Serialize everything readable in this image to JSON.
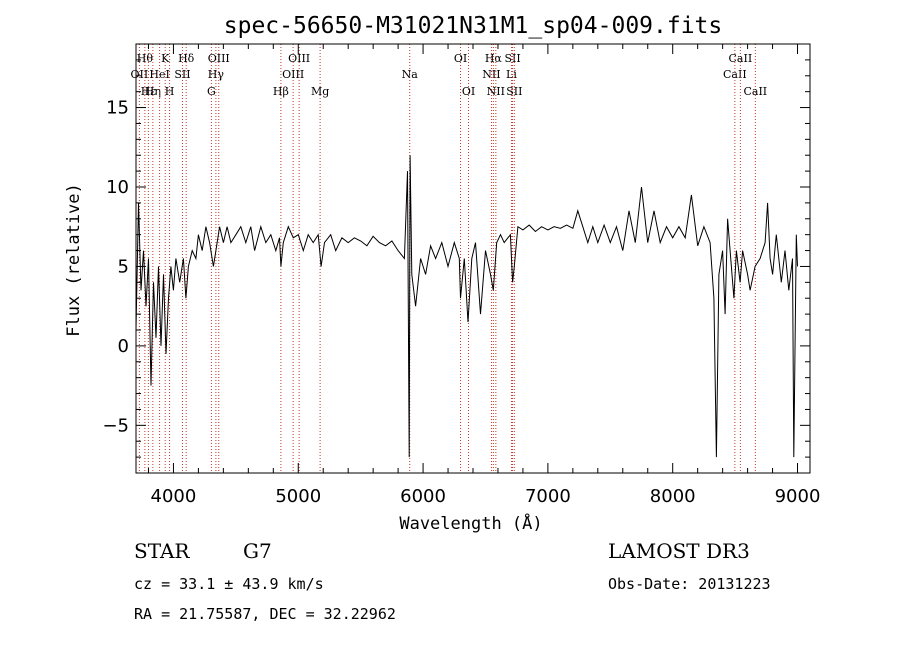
{
  "chart_data": {
    "type": "line",
    "title": "spec-56650-M31021N31M1_sp04-009.fits",
    "xlabel": "Wavelength (Å)",
    "ylabel": "Flux (relative)",
    "xlim": [
      3700,
      9100
    ],
    "ylim": [
      -8,
      19
    ],
    "xticks": [
      4000,
      5000,
      6000,
      7000,
      8000,
      9000
    ],
    "xtick_labels": [
      "4000",
      "5000",
      "6000",
      "7000",
      "8000",
      "9000"
    ],
    "yticks": [
      -5,
      0,
      5,
      10,
      15
    ],
    "ytick_labels": [
      "−5",
      "0",
      "5",
      "10",
      "15"
    ],
    "series": [
      {
        "name": "flux",
        "points": [
          [
            3700,
            1.0
          ],
          [
            3720,
            9.0
          ],
          [
            3740,
            3.5
          ],
          [
            3760,
            6.0
          ],
          [
            3780,
            2.5
          ],
          [
            3800,
            5.5
          ],
          [
            3820,
            -2.5
          ],
          [
            3840,
            4.0
          ],
          [
            3860,
            0.5
          ],
          [
            3880,
            5.0
          ],
          [
            3900,
            0.0
          ],
          [
            3920,
            4.5
          ],
          [
            3940,
            -0.5
          ],
          [
            3960,
            3.0
          ],
          [
            3980,
            5.0
          ],
          [
            4000,
            3.5
          ],
          [
            4020,
            5.5
          ],
          [
            4050,
            4.0
          ],
          [
            4080,
            5.5
          ],
          [
            4100,
            3.0
          ],
          [
            4120,
            5.0
          ],
          [
            4150,
            6.0
          ],
          [
            4180,
            5.5
          ],
          [
            4200,
            7.0
          ],
          [
            4230,
            6.0
          ],
          [
            4260,
            7.5
          ],
          [
            4290,
            6.5
          ],
          [
            4320,
            5.0
          ],
          [
            4340,
            6.0
          ],
          [
            4370,
            7.5
          ],
          [
            4400,
            6.5
          ],
          [
            4430,
            7.5
          ],
          [
            4460,
            6.5
          ],
          [
            4500,
            7.0
          ],
          [
            4540,
            7.5
          ],
          [
            4580,
            6.5
          ],
          [
            4620,
            7.5
          ],
          [
            4650,
            6.0
          ],
          [
            4700,
            7.5
          ],
          [
            4740,
            6.5
          ],
          [
            4780,
            7.0
          ],
          [
            4820,
            6.0
          ],
          [
            4850,
            6.8
          ],
          [
            4861,
            5.0
          ],
          [
            4880,
            6.5
          ],
          [
            4920,
            7.5
          ],
          [
            4960,
            6.8
          ],
          [
            5000,
            7.0
          ],
          [
            5040,
            6.0
          ],
          [
            5080,
            7.0
          ],
          [
            5120,
            6.5
          ],
          [
            5160,
            7.0
          ],
          [
            5183,
            5.0
          ],
          [
            5210,
            6.5
          ],
          [
            5260,
            7.0
          ],
          [
            5300,
            6.0
          ],
          [
            5350,
            6.8
          ],
          [
            5400,
            6.5
          ],
          [
            5450,
            6.8
          ],
          [
            5500,
            6.6
          ],
          [
            5550,
            6.3
          ],
          [
            5600,
            6.9
          ],
          [
            5650,
            6.5
          ],
          [
            5700,
            6.3
          ],
          [
            5750,
            6.6
          ],
          [
            5800,
            6.0
          ],
          [
            5850,
            5.5
          ],
          [
            5875,
            11.0
          ],
          [
            5889,
            -7.0
          ],
          [
            5896,
            12.0
          ],
          [
            5910,
            4.5
          ],
          [
            5940,
            2.5
          ],
          [
            5980,
            5.5
          ],
          [
            6020,
            4.5
          ],
          [
            6060,
            6.3
          ],
          [
            6100,
            5.5
          ],
          [
            6150,
            6.5
          ],
          [
            6200,
            5.0
          ],
          [
            6250,
            6.5
          ],
          [
            6290,
            5.5
          ],
          [
            6300,
            3.0
          ],
          [
            6330,
            5.5
          ],
          [
            6360,
            1.5
          ],
          [
            6390,
            5.5
          ],
          [
            6420,
            6.5
          ],
          [
            6460,
            2.0
          ],
          [
            6500,
            6.0
          ],
          [
            6540,
            4.5
          ],
          [
            6563,
            3.5
          ],
          [
            6590,
            6.5
          ],
          [
            6620,
            7.0
          ],
          [
            6650,
            6.5
          ],
          [
            6700,
            7.0
          ],
          [
            6717,
            4.0
          ],
          [
            6731,
            5.0
          ],
          [
            6760,
            7.5
          ],
          [
            6800,
            7.3
          ],
          [
            6850,
            7.6
          ],
          [
            6900,
            7.2
          ],
          [
            6950,
            7.5
          ],
          [
            7000,
            7.3
          ],
          [
            7050,
            7.5
          ],
          [
            7100,
            7.4
          ],
          [
            7150,
            7.6
          ],
          [
            7200,
            7.4
          ],
          [
            7240,
            8.5
          ],
          [
            7280,
            7.5
          ],
          [
            7320,
            6.5
          ],
          [
            7360,
            7.5
          ],
          [
            7400,
            6.5
          ],
          [
            7450,
            7.6
          ],
          [
            7500,
            6.5
          ],
          [
            7550,
            7.5
          ],
          [
            7600,
            6.0
          ],
          [
            7650,
            8.5
          ],
          [
            7700,
            6.5
          ],
          [
            7750,
            10.0
          ],
          [
            7800,
            6.5
          ],
          [
            7850,
            8.5
          ],
          [
            7900,
            6.5
          ],
          [
            7950,
            7.5
          ],
          [
            8000,
            6.8
          ],
          [
            8050,
            7.5
          ],
          [
            8100,
            6.8
          ],
          [
            8150,
            9.5
          ],
          [
            8200,
            6.3
          ],
          [
            8250,
            7.5
          ],
          [
            8300,
            6.5
          ],
          [
            8330,
            3.0
          ],
          [
            8350,
            -7.0
          ],
          [
            8370,
            4.5
          ],
          [
            8400,
            6.0
          ],
          [
            8420,
            2.0
          ],
          [
            8440,
            8.0
          ],
          [
            8460,
            6.0
          ],
          [
            8490,
            3.0
          ],
          [
            8510,
            6.0
          ],
          [
            8540,
            4.0
          ],
          [
            8560,
            6.0
          ],
          [
            8600,
            4.5
          ],
          [
            8620,
            3.5
          ],
          [
            8660,
            5.0
          ],
          [
            8700,
            5.5
          ],
          [
            8740,
            6.5
          ],
          [
            8760,
            9.0
          ],
          [
            8780,
            5.5
          ],
          [
            8800,
            4.5
          ],
          [
            8830,
            7.0
          ],
          [
            8870,
            4.0
          ],
          [
            8900,
            6.0
          ],
          [
            8930,
            3.5
          ],
          [
            8960,
            5.5
          ],
          [
            8970,
            -7.0
          ],
          [
            8990,
            7.0
          ],
          [
            9000,
            5.0
          ]
        ]
      }
    ],
    "spectral_lines": [
      {
        "wavelength": 3727,
        "label": "OII",
        "row": 2
      },
      {
        "wavelength": 3771,
        "label": "Hθ",
        "row": 1
      },
      {
        "wavelength": 3799,
        "label": "Hε",
        "row": 3
      },
      {
        "wavelength": 3835,
        "label": "Hη",
        "row": 3
      },
      {
        "wavelength": 3889,
        "label": "HeI",
        "row": 2
      },
      {
        "wavelength": 3934,
        "label": "K",
        "row": 1
      },
      {
        "wavelength": 3969,
        "label": "H",
        "row": 3
      },
      {
        "wavelength": 4072,
        "label": "SII",
        "row": 2
      },
      {
        "wavelength": 4102,
        "label": "Hδ",
        "row": 1
      },
      {
        "wavelength": 4304,
        "label": "G",
        "row": 3
      },
      {
        "wavelength": 4340,
        "label": "Hγ",
        "row": 2
      },
      {
        "wavelength": 4363,
        "label": "OIII",
        "row": 1
      },
      {
        "wavelength": 4861,
        "label": "Hβ",
        "row": 3
      },
      {
        "wavelength": 4959,
        "label": "OIII",
        "row": 2
      },
      {
        "wavelength": 5007,
        "label": "OIII",
        "row": 1
      },
      {
        "wavelength": 5175,
        "label": "Mg",
        "row": 3
      },
      {
        "wavelength": 5893,
        "label": "Na",
        "row": 2
      },
      {
        "wavelength": 6300,
        "label": "OI",
        "row": 1
      },
      {
        "wavelength": 6364,
        "label": "OI",
        "row": 3
      },
      {
        "wavelength": 6548,
        "label": "NII",
        "row": 2
      },
      {
        "wavelength": 6563,
        "label": "Hα",
        "row": 1
      },
      {
        "wavelength": 6583,
        "label": "NII",
        "row": 3
      },
      {
        "wavelength": 6708,
        "label": "Li",
        "row": 2
      },
      {
        "wavelength": 6717,
        "label": "SII",
        "row": 1
      },
      {
        "wavelength": 6731,
        "label": "SII",
        "row": 3
      },
      {
        "wavelength": 8498,
        "label": "CaII",
        "row": 2
      },
      {
        "wavelength": 8542,
        "label": "CaII",
        "row": 1
      },
      {
        "wavelength": 8662,
        "label": "CaII",
        "row": 3
      }
    ]
  },
  "info": {
    "class": "STAR",
    "subclass": "G7",
    "survey": "LAMOST DR3",
    "cz": "cz = 33.1 ± 43.9 km/s",
    "obs_date": "Obs-Date: 20131223",
    "coords": "RA =  21.75587, DEC =  32.22962"
  }
}
